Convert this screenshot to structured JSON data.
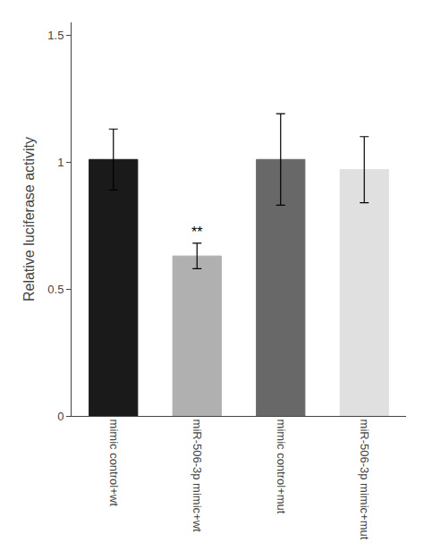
{
  "chart_data": {
    "type": "bar",
    "categories": [
      "mimic control+wt",
      "miR-506-3p mimic+wt",
      "mimic control+mut",
      "miR-506-3p mimic+mut"
    ],
    "values": [
      1.01,
      0.63,
      1.01,
      0.97
    ],
    "errors": [
      0.12,
      0.05,
      0.18,
      0.13
    ],
    "colors": [
      "#1a1a1a",
      "#b0b0b0",
      "#686868",
      "#e0e0e0"
    ],
    "ylabel": "Relative luciferase activity",
    "ylim": [
      0,
      1.55
    ],
    "yticks": [
      0,
      0.5,
      1,
      1.5
    ],
    "annotations": [
      {
        "x": "miR-506-3p mimic+wt",
        "text": "**"
      }
    ],
    "grid": false
  }
}
